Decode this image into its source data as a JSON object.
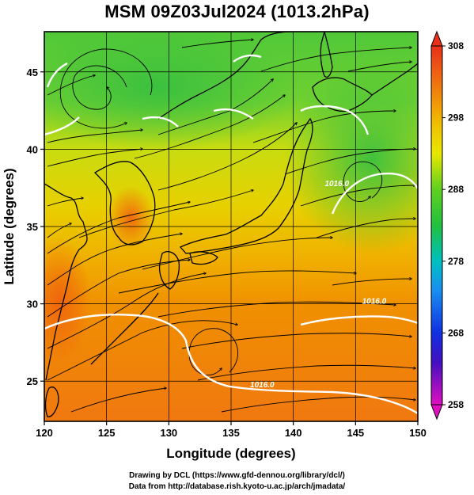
{
  "title": "MSM 09Z03Jul2024 (1013.2hPa)",
  "credits": {
    "line1": "Drawing by DCL (https://www.gfd-dennou.org/library/dcl/)",
    "line2": "Data from http://database.rish.kyoto-u.ac.jp/arch/jmadata/"
  },
  "chart_data": {
    "type": "map",
    "xlabel": "Longitude (degrees)",
    "ylabel": "Latitude  (degrees)",
    "xlim": [
      120,
      150
    ],
    "ylim": [
      22.4,
      47.6
    ],
    "x_ticks": [
      "120",
      "125",
      "130",
      "135",
      "140",
      "145",
      "150"
    ],
    "x_tick_values": [
      120,
      125,
      130,
      135,
      140,
      145,
      150
    ],
    "y_ticks": [
      "25",
      "30",
      "35",
      "40",
      "45"
    ],
    "y_tick_values": [
      25,
      30,
      35,
      40,
      45
    ],
    "grid": true,
    "colorbar": {
      "min": 258,
      "max": 308,
      "labels": [
        "308",
        "298",
        "288",
        "278",
        "268",
        "258"
      ],
      "label_values": [
        308,
        298,
        288,
        278,
        268,
        258
      ],
      "extend": "both",
      "placement": "right"
    },
    "isobar_labels": [
      {
        "text": "1016.0",
        "lon": 146.5,
        "lat": 30.0
      },
      {
        "text": "1016.0",
        "lon": 137.5,
        "lat": 24.6
      },
      {
        "text": "1016.0",
        "lon": 143.5,
        "lat": 37.6
      }
    ],
    "colors": {
      "warm": "#f07a10",
      "mid": "#f0d000",
      "green": "#40c040",
      "isobar": "#ffffff",
      "stream": "#000000"
    }
  }
}
